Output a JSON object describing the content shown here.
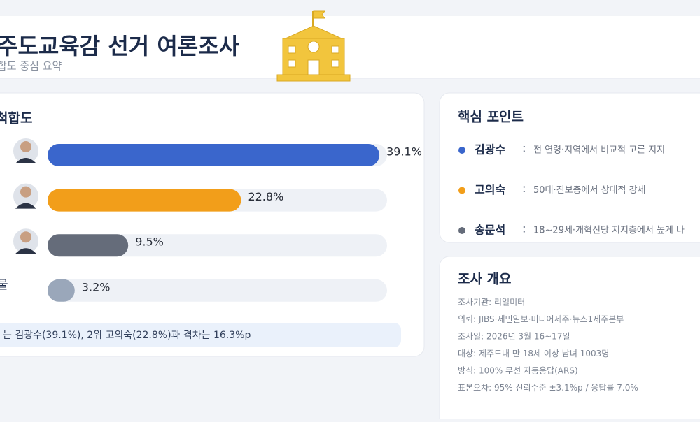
{
  "header": {
    "title": "주도교육감 선거 여론조사",
    "subtitle": "합도 중심 요약"
  },
  "chart_data": {
    "type": "hbar",
    "title": "척합도",
    "categories": [
      null,
      null,
      null,
      "물"
    ],
    "values": [
      39.1,
      22.8,
      9.5,
      3.2
    ],
    "value_labels": [
      "39.1%",
      "22.8%",
      "9.5%",
      "3.2%"
    ],
    "colors": [
      "#3a66cc",
      "#f29e1a",
      "#656c7a",
      "#9aa7ba"
    ],
    "xlim": [
      0,
      40
    ],
    "note": "는 김광수(39.1%), 2위 고의숙(22.8%)과 격차는 16.3%p"
  },
  "key_points": {
    "title": "핵심 포인트",
    "items": [
      {
        "name": "김광수",
        "sep": ":",
        "text": "전 연령·지역에서 비교적 고른 지지",
        "color": "#3a66cc"
      },
      {
        "name": "고의숙",
        "sep": ":",
        "text": "50대·진보층에서 상대적 강세",
        "color": "#f29e1a"
      },
      {
        "name": "송문석",
        "sep": ":",
        "text": "18~29세·개혁신당 지지층에서 높게 나",
        "color": "#656c7a"
      }
    ]
  },
  "overview": {
    "title": "조사 개요",
    "lines": [
      "조사기관: 리얼미터",
      "의뢰: JIBS·제민일보·미디어제주·뉴스1제주본부",
      "조사일: 2026년 3월 16~17일",
      "대상: 제주도내 만 18세 이상 남녀 1003명",
      "방식: 100% 무선 자동응답(ARS)",
      "표본오차: 95% 신뢰수준 ±3.1%p / 응답률 7.0%"
    ]
  }
}
